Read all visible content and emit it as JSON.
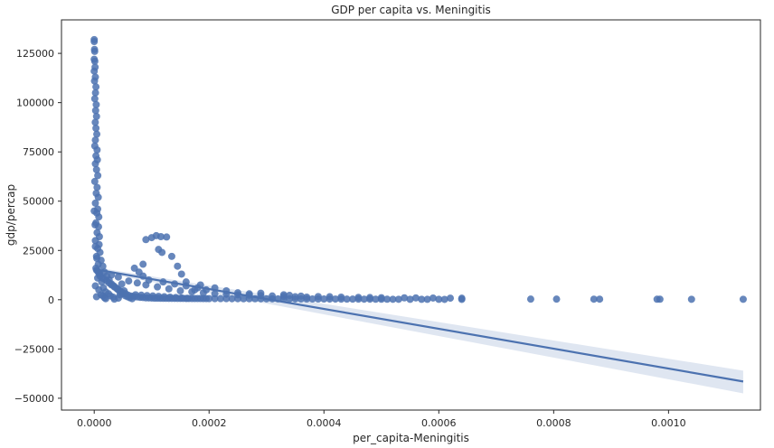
{
  "chart_data": {
    "type": "scatter",
    "title": "GDP per capita vs. Meningitis",
    "xlabel": "per_capita-Meningitis",
    "ylabel": "gdp/percap",
    "xlim": [
      -5.7e-05,
      0.00116
    ],
    "ylim": [
      -56000,
      142000
    ],
    "xticks": [
      0.0,
      0.0002,
      0.0004,
      0.0006,
      0.0008,
      0.001
    ],
    "xtick_labels": [
      "0.0000",
      "0.0002",
      "0.0004",
      "0.0006",
      "0.0008",
      "0.0010"
    ],
    "yticks": [
      -50000,
      -25000,
      0,
      25000,
      50000,
      75000,
      100000,
      125000
    ],
    "ytick_labels": [
      "−50000",
      "−25000",
      "0",
      "25000",
      "50000",
      "75000",
      "100000",
      "125000"
    ],
    "grid": false,
    "point_color": "#4c72b0",
    "line_color": "#4c72b0",
    "band_color": "#4c72b0",
    "points": [
      [
        0.0,
        132000
      ],
      [
        0.0,
        131000
      ],
      [
        5e-07,
        127000
      ],
      [
        8e-07,
        126000
      ],
      [
        0.0,
        122000
      ],
      [
        1e-06,
        121000
      ],
      [
        1.5e-06,
        118000
      ],
      [
        0.0,
        116000
      ],
      [
        2e-06,
        113000
      ],
      [
        5e-07,
        111000
      ],
      [
        3e-06,
        108000
      ],
      [
        2.2e-06,
        105000
      ],
      [
        1e-06,
        102000
      ],
      [
        3.5e-06,
        99000
      ],
      [
        2.5e-06,
        96000
      ],
      [
        4e-06,
        93000
      ],
      [
        1.8e-06,
        90000
      ],
      [
        3e-06,
        87000
      ],
      [
        4.5e-06,
        84000
      ],
      [
        2e-06,
        81000
      ],
      [
        1e-06,
        78000
      ],
      [
        5e-06,
        76000
      ],
      [
        3e-06,
        73000
      ],
      [
        5.5e-06,
        71000
      ],
      [
        2e-06,
        69000
      ],
      [
        4e-06,
        66000
      ],
      [
        6.2e-06,
        63000
      ],
      [
        1e-06,
        60000
      ],
      [
        5e-06,
        57000
      ],
      [
        3.5e-06,
        54000
      ],
      [
        7e-06,
        52000
      ],
      [
        2e-06,
        49000
      ],
      [
        6e-06,
        46000
      ],
      [
        4.5e-06,
        44000
      ],
      [
        8e-06,
        42000
      ],
      [
        3e-06,
        39000
      ],
      [
        7.5e-06,
        37000
      ],
      [
        5e-06,
        34000
      ],
      [
        9e-06,
        32000
      ],
      [
        2e-06,
        30000
      ],
      [
        8.5e-06,
        28000
      ],
      [
        6e-06,
        26000
      ],
      [
        1e-05,
        24000
      ],
      [
        4e-06,
        22000
      ],
      [
        1.2e-05,
        20000
      ],
      [
        7e-06,
        18000
      ],
      [
        1.5e-05,
        17000
      ],
      [
        3e-06,
        16000
      ],
      [
        1.8e-05,
        14000
      ],
      [
        1e-05,
        13000
      ],
      [
        2.2e-05,
        12000
      ],
      [
        6e-06,
        11000
      ],
      [
        2.6e-05,
        10000
      ],
      [
        1.3e-05,
        9000
      ],
      [
        3e-05,
        8000
      ],
      [
        2e-06,
        7000
      ],
      [
        3.5e-05,
        6500
      ],
      [
        1.6e-05,
        6000
      ],
      [
        4e-05,
        5500
      ],
      [
        8e-06,
        5000
      ],
      [
        4.5e-05,
        4500
      ],
      [
        2e-05,
        4000
      ],
      [
        5e-05,
        3500
      ],
      [
        5.5e-05,
        3000
      ],
      [
        1.2e-05,
        2500
      ],
      [
        6e-05,
        2200
      ],
      [
        2.8e-05,
        2000
      ],
      [
        6.5e-05,
        1800
      ],
      [
        7e-05,
        1600
      ],
      [
        4e-06,
        1500
      ],
      [
        7.5e-05,
        1400
      ],
      [
        3.3e-05,
        1300
      ],
      [
        8e-05,
        1200
      ],
      [
        8.5e-05,
        1100
      ],
      [
        1.8e-05,
        1000
      ],
      [
        9e-05,
        950
      ],
      [
        9.5e-05,
        900
      ],
      [
        0.0001,
        850
      ],
      [
        4.2e-05,
        800
      ],
      [
        0.000105,
        780
      ],
      [
        0.00011,
        760
      ],
      [
        0.000115,
        740
      ],
      [
        0.00012,
        720
      ],
      [
        0.000125,
        700
      ],
      [
        0.00013,
        690
      ],
      [
        0.000135,
        680
      ],
      [
        0.00014,
        670
      ],
      [
        0.000145,
        660
      ],
      [
        0.00015,
        650
      ],
      [
        0.000155,
        640
      ],
      [
        0.00016,
        630
      ],
      [
        0.000165,
        620
      ],
      [
        0.00017,
        610
      ],
      [
        0.000175,
        600
      ],
      [
        0.00018,
        590
      ],
      [
        0.000185,
        580
      ],
      [
        0.00019,
        570
      ],
      [
        0.000195,
        560
      ],
      [
        0.0002,
        550
      ],
      [
        0.00021,
        540
      ],
      [
        0.00022,
        530
      ],
      [
        0.00023,
        520
      ],
      [
        0.00024,
        510
      ],
      [
        0.00025,
        500
      ],
      [
        0.00026,
        490
      ],
      [
        0.00027,
        480
      ],
      [
        0.00028,
        470
      ],
      [
        0.00029,
        460
      ],
      [
        0.0003,
        450
      ],
      [
        0.00031,
        440
      ],
      [
        0.00032,
        430
      ],
      [
        0.00033,
        420
      ],
      [
        0.00034,
        410
      ],
      [
        0.00035,
        400
      ],
      [
        0.00036,
        390
      ],
      [
        0.00037,
        380
      ],
      [
        0.00038,
        370
      ],
      [
        0.00039,
        360
      ],
      [
        0.0004,
        350
      ],
      [
        0.00041,
        340
      ],
      [
        0.00042,
        330
      ],
      [
        0.00043,
        320
      ],
      [
        0.00044,
        310
      ],
      [
        0.00045,
        300
      ],
      [
        0.00046,
        290
      ],
      [
        0.00047,
        280
      ],
      [
        0.00048,
        270
      ],
      [
        0.00049,
        260
      ],
      [
        0.0005,
        250
      ],
      [
        0.00051,
        240
      ],
      [
        0.00052,
        230
      ],
      [
        0.00053,
        220
      ],
      [
        0.00055,
        210
      ],
      [
        0.00057,
        200
      ],
      [
        0.00058,
        190
      ],
      [
        0.0006,
        180
      ],
      [
        0.00061,
        170
      ],
      [
        0.00064,
        160
      ],
      [
        0.0,
        45000
      ],
      [
        1.5e-06,
        38000
      ],
      [
        2e-06,
        27000
      ],
      [
        4.5e-06,
        21000
      ],
      [
        3e-05,
        12500
      ],
      [
        4.2e-05,
        11500
      ],
      [
        6e-05,
        9500
      ],
      [
        7.5e-05,
        8500
      ],
      [
        9e-05,
        7500
      ],
      [
        0.00011,
        6500
      ],
      [
        0.00013,
        5500
      ],
      [
        0.00015,
        4500
      ],
      [
        0.00017,
        4000
      ],
      [
        0.00019,
        3500
      ],
      [
        0.00021,
        3000
      ],
      [
        0.00023,
        2800
      ],
      [
        0.00025,
        2500
      ],
      [
        0.00027,
        2300
      ],
      [
        0.00029,
        2100
      ],
      [
        0.00031,
        1900
      ],
      [
        0.00033,
        1700
      ],
      [
        0.00035,
        1500
      ],
      [
        0.00037,
        1300
      ],
      [
        7e-05,
        16000
      ],
      [
        7.8e-05,
        14000
      ],
      [
        8.5e-05,
        12000
      ],
      [
        9.5e-05,
        10000
      ],
      [
        0.00012,
        9000
      ],
      [
        0.00014,
        8000
      ],
      [
        0.00016,
        7000
      ],
      [
        0.00018,
        6000
      ],
      [
        0.000195,
        5000
      ],
      [
        7.2e-05,
        2500
      ],
      [
        8.2e-05,
        2300
      ],
      [
        9.2e-05,
        2100
      ],
      [
        0.000102,
        1900
      ],
      [
        0.000112,
        1700
      ],
      [
        0.000122,
        1500
      ],
      [
        0.000132,
        1300
      ],
      [
        0.000142,
        1100
      ],
      [
        0.000152,
        900
      ],
      [
        0.000162,
        700
      ],
      [
        9e-05,
        30500
      ],
      [
        0.0001,
        31500
      ],
      [
        0.000108,
        32500
      ],
      [
        0.000116,
        32000
      ],
      [
        0.000126,
        31800
      ],
      [
        0.000112,
        25500
      ],
      [
        0.000118,
        24000
      ],
      [
        8.5e-05,
        18000
      ],
      [
        0.000135,
        22000
      ],
      [
        0.000145,
        17000
      ],
      [
        0.000152,
        13000
      ],
      [
        0.00016,
        9000
      ],
      [
        0.000175,
        5000
      ],
      [
        0.000185,
        7500
      ],
      [
        0.00021,
        6000
      ],
      [
        0.00023,
        4500
      ],
      [
        0.00025,
        3500
      ],
      [
        0.00027,
        3000
      ],
      [
        0.00029,
        3300
      ],
      [
        0.00033,
        2500
      ],
      [
        0.00034,
        2200
      ],
      [
        0.00036,
        1800
      ],
      [
        0.00039,
        1600
      ],
      [
        0.00041,
        1500
      ],
      [
        0.00043,
        1300
      ],
      [
        0.00046,
        1200
      ],
      [
        0.00048,
        1100
      ],
      [
        0.0005,
        1000
      ],
      [
        0.00054,
        950
      ],
      [
        0.00056,
        900
      ],
      [
        0.00059,
        850
      ],
      [
        0.00062,
        800
      ],
      [
        0.00064,
        750
      ],
      [
        0.00076,
        300
      ],
      [
        0.000805,
        300
      ],
      [
        0.00087,
        280
      ],
      [
        0.00088,
        280
      ],
      [
        0.00098,
        250
      ],
      [
        0.000985,
        250
      ],
      [
        0.00104,
        230
      ],
      [
        0.00113,
        220
      ],
      [
        4e-06,
        15000
      ],
      [
        6e-06,
        14500
      ],
      [
        8e-06,
        13500
      ],
      [
        1e-05,
        12000
      ],
      [
        1.4e-05,
        11000
      ],
      [
        1.8e-05,
        10500
      ],
      [
        2.2e-05,
        9500
      ],
      [
        2.6e-05,
        8500
      ],
      [
        3e-05,
        7500
      ],
      [
        3.4e-05,
        7000
      ],
      [
        3.8e-05,
        6000
      ],
      [
        4.2e-05,
        5000
      ],
      [
        4.6e-05,
        4000
      ],
      [
        5e-05,
        3000
      ],
      [
        5.4e-05,
        2000
      ],
      [
        5.8e-05,
        1500
      ],
      [
        6.2e-05,
        1000
      ],
      [
        6.6e-05,
        500
      ],
      [
        2e-05,
        500
      ],
      [
        3.5e-05,
        300
      ],
      [
        1.5e-05,
        2000
      ],
      [
        2.5e-05,
        3000
      ],
      [
        4.5e-05,
        2500
      ],
      [
        5.2e-05,
        4500
      ],
      [
        4.8e-05,
        8000
      ]
    ],
    "regression": {
      "x_start": 0.0,
      "x_end": 0.00113,
      "y_start": 15500,
      "y_end": -41500,
      "band_start_upper": 16500,
      "band_start_lower": 14500,
      "band_end_upper": -36000,
      "band_end_lower": -47500
    }
  }
}
